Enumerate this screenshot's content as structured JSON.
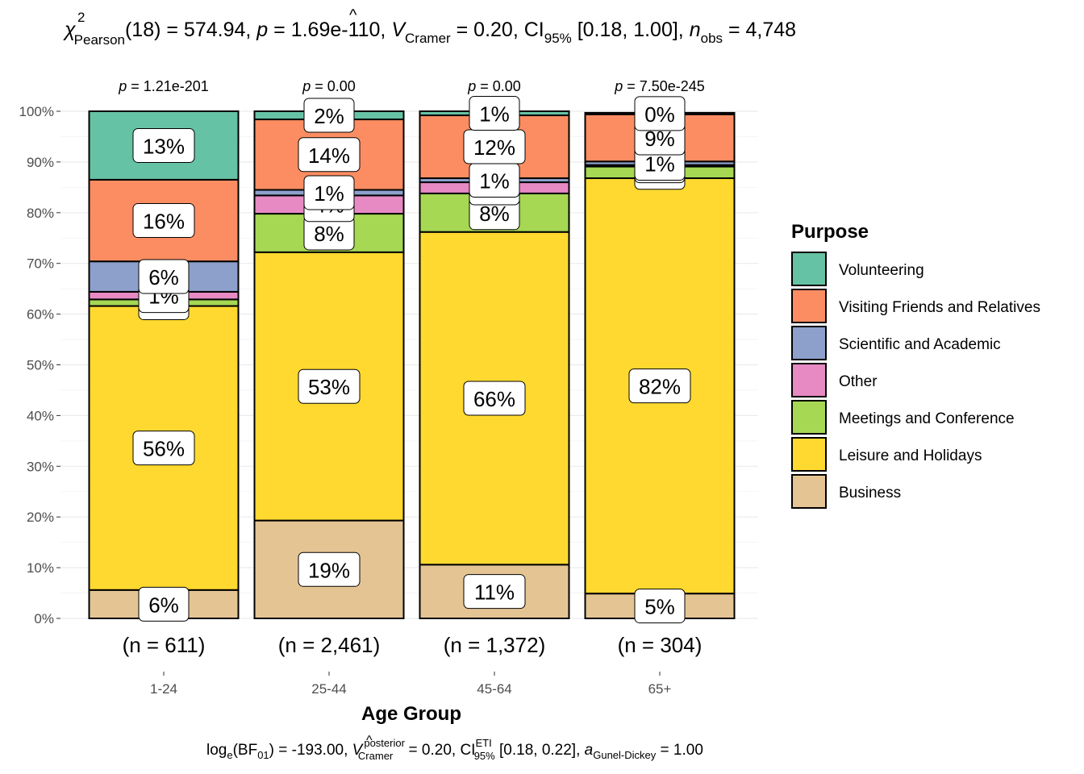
{
  "chart_data": {
    "type": "bar",
    "stacked": true,
    "percent": true,
    "title": "χ²_Pearson(18) = 574.94, p = 1.69e-110, V̂_Cramer = 0.20, CI_95% [0.18, 1.00], n_obs = 4,748",
    "title_parts": {
      "chi": "χ",
      "chi_sup": "2",
      "chi_sub": "Pearson",
      "stat": "(18) = 574.94, ",
      "p_sym": "p",
      "p_val": " = 1.69e-110, ",
      "v_sym": "V",
      "v_sub": "Cramer",
      "v_val": " = 0.20, CI",
      "ci_sub": "95%",
      "ci_val": " [0.18, 1.00], ",
      "n_sym": "n",
      "n_sub": "obs",
      "n_val": " = 4,748"
    },
    "caption_parts": {
      "log": "log",
      "log_sub": "e",
      "bf": "(BF",
      "bf_sub": "01",
      "bf_val": ") = -193.00, ",
      "v_sym": "V",
      "v_sup": "posterior",
      "v_sub": "Cramer",
      "v_val": " = 0.20, CI",
      "ci_sup": "ETI",
      "ci_sub": "95%",
      "ci_val": " [0.18, 0.22], ",
      "a_sym": "a",
      "a_sub": "Gunel-Dickey",
      "a_val": " = 1.00"
    },
    "xlabel": "Age Group",
    "ylabel": "",
    "ylim": [
      0,
      100
    ],
    "yticks": [
      "0%",
      "10%",
      "20%",
      "30%",
      "40%",
      "50%",
      "60%",
      "70%",
      "80%",
      "90%",
      "100%"
    ],
    "grid": true,
    "categories": [
      "1-24",
      "25-44",
      "45-64",
      "65+"
    ],
    "counts": [
      "(n = 611)",
      "(n = 2,461)",
      "(n = 1,372)",
      "(n = 304)"
    ],
    "pvalues": [
      "1.21e-201",
      "0.00",
      "0.00",
      "7.50e-245"
    ],
    "p_prefix": "p = ",
    "legend": {
      "title": "Purpose",
      "position": "right"
    },
    "series": [
      {
        "name": "Business",
        "color": "#E5C494",
        "values": [
          5.6,
          19.3,
          10.6,
          4.9
        ],
        "labels": [
          "6%",
          "19%",
          "11%",
          "5%"
        ]
      },
      {
        "name": "Leisure and Holidays",
        "color": "#FFD92F",
        "values": [
          56.0,
          52.9,
          65.6,
          81.9
        ],
        "labels": [
          "56%",
          "53%",
          "66%",
          "82%"
        ]
      },
      {
        "name": "Meetings and Conference",
        "color": "#A6D854",
        "values": [
          1.3,
          7.6,
          7.6,
          2.3
        ],
        "labels": [
          "1%",
          "8%",
          "8%",
          "2%"
        ]
      },
      {
        "name": "Other",
        "color": "#E78AC3",
        "values": [
          1.5,
          3.6,
          2.2,
          0.3
        ],
        "labels": [
          "1%",
          "4%",
          "2%",
          "0%"
        ]
      },
      {
        "name": "Scientific and Academic",
        "color": "#8DA0CB",
        "values": [
          6.0,
          1.1,
          0.8,
          0.7
        ],
        "labels": [
          "6%",
          "1%",
          "1%",
          "1%"
        ]
      },
      {
        "name": "Visiting Friends and Relatives",
        "color": "#FC8D62",
        "values": [
          16.1,
          13.9,
          12.4,
          9.3
        ],
        "labels": [
          "16%",
          "14%",
          "12%",
          "9%"
        ]
      },
      {
        "name": "Volunteering",
        "color": "#66C2A5",
        "values": [
          13.5,
          1.6,
          0.8,
          0.3
        ],
        "labels": [
          "13%",
          "2%",
          "1%",
          "0%"
        ]
      }
    ]
  }
}
